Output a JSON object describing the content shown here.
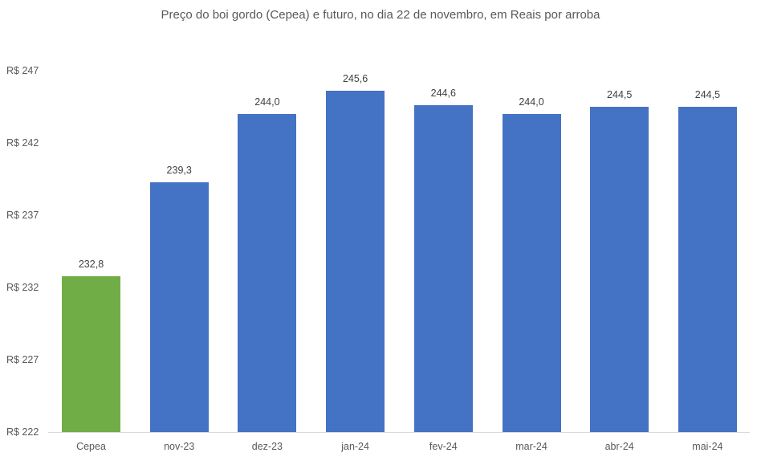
{
  "chart_data": {
    "type": "bar",
    "title": "Preço do boi gordo (Cepea) e futuro, no dia 22 de novembro, em Reais por arroba",
    "xlabel": "",
    "ylabel": "",
    "categories": [
      "Cepea",
      "nov-23",
      "dez-23",
      "jan-24",
      "fev-24",
      "mar-24",
      "abr-24",
      "mai-24"
    ],
    "values": [
      232.8,
      239.3,
      244.0,
      245.6,
      244.6,
      244.0,
      244.5,
      244.5
    ],
    "value_labels": [
      "232,8",
      "239,3",
      "244,0",
      "245,6",
      "244,6",
      "244,0",
      "244,5",
      "244,5"
    ],
    "bar_colors": [
      "#70AD47",
      "#4472C4",
      "#4472C4",
      "#4472C4",
      "#4472C4",
      "#4472C4",
      "#4472C4",
      "#4472C4"
    ],
    "ylim": [
      222,
      247
    ],
    "yticks": [
      222,
      227,
      232,
      237,
      242,
      247
    ],
    "ytick_labels": [
      "R$ 222",
      "R$ 227",
      "R$ 232",
      "R$ 237",
      "R$ 242",
      "R$ 247"
    ],
    "grid": false,
    "legend": null
  }
}
